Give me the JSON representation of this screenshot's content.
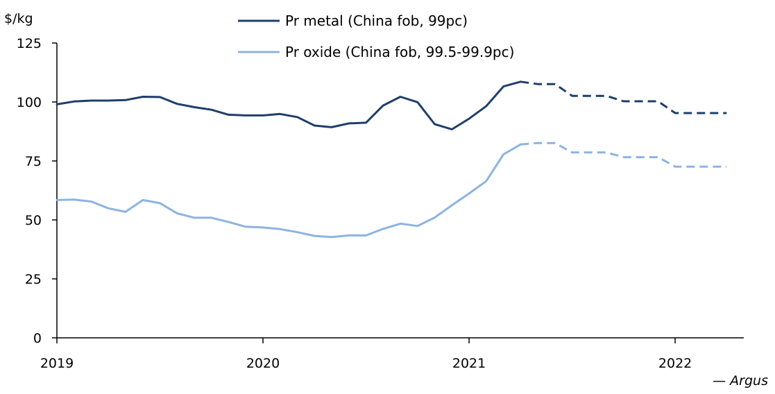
{
  "chart_data": {
    "type": "line",
    "ylabel": "$/kg",
    "ylim": [
      0,
      125
    ],
    "yticks": [
      0,
      25,
      50,
      75,
      100,
      125
    ],
    "xlim": [
      2019.0,
      2022.333
    ],
    "xticks": [
      {
        "value": 2019,
        "label": "2019"
      },
      {
        "value": 2020,
        "label": "2020"
      },
      {
        "value": 2021,
        "label": "2021"
      },
      {
        "value": 2022,
        "label": "2022"
      }
    ],
    "grid": false,
    "legend_position": "top-center",
    "source": "— Argus",
    "colors": {
      "metal": "#1f3e6b",
      "oxide": "#8db3e2",
      "axis": "#000000"
    },
    "series": [
      {
        "name": "Pr metal (China fob, 99pc)",
        "key": "metal",
        "actual": [
          [
            2019.0,
            99
          ],
          [
            2019.083,
            100.2
          ],
          [
            2019.167,
            100.6
          ],
          [
            2019.25,
            100.6
          ],
          [
            2019.333,
            100.8
          ],
          [
            2019.417,
            102.2
          ],
          [
            2019.5,
            102.1
          ],
          [
            2019.583,
            99.2
          ],
          [
            2019.667,
            97.8
          ],
          [
            2019.75,
            96.7
          ],
          [
            2019.833,
            94.6
          ],
          [
            2019.917,
            94.3
          ],
          [
            2020.0,
            94.3
          ],
          [
            2020.083,
            94.9
          ],
          [
            2020.167,
            93.6
          ],
          [
            2020.25,
            90.0
          ],
          [
            2020.333,
            89.3
          ],
          [
            2020.417,
            90.9
          ],
          [
            2020.5,
            91.2
          ],
          [
            2020.583,
            98.5
          ],
          [
            2020.667,
            102.2
          ],
          [
            2020.75,
            99.9
          ],
          [
            2020.833,
            90.6
          ],
          [
            2020.917,
            88.4
          ],
          [
            2021.0,
            92.9
          ],
          [
            2021.083,
            98.2
          ],
          [
            2021.167,
            106.6
          ],
          [
            2021.25,
            108.6
          ]
        ],
        "forecast": [
          [
            2021.25,
            108.6
          ],
          [
            2021.333,
            107.6
          ],
          [
            2021.417,
            107.6
          ],
          [
            2021.5,
            102.6
          ],
          [
            2021.583,
            102.6
          ],
          [
            2021.667,
            102.6
          ],
          [
            2021.75,
            100.3
          ],
          [
            2021.833,
            100.3
          ],
          [
            2021.917,
            100.3
          ],
          [
            2022.0,
            95.3
          ],
          [
            2022.083,
            95.3
          ],
          [
            2022.167,
            95.3
          ],
          [
            2022.25,
            95.3
          ]
        ]
      },
      {
        "name": "Pr oxide (China fob, 99.5-99.9pc)",
        "key": "oxide",
        "actual": [
          [
            2019.0,
            58.4
          ],
          [
            2019.083,
            58.6
          ],
          [
            2019.167,
            57.8
          ],
          [
            2019.25,
            54.9
          ],
          [
            2019.333,
            53.4
          ],
          [
            2019.417,
            58.4
          ],
          [
            2019.5,
            57.1
          ],
          [
            2019.583,
            52.8
          ],
          [
            2019.667,
            50.9
          ],
          [
            2019.75,
            50.9
          ],
          [
            2019.833,
            49.1
          ],
          [
            2019.917,
            47.1
          ],
          [
            2020.0,
            46.8
          ],
          [
            2020.083,
            46.1
          ],
          [
            2020.167,
            44.8
          ],
          [
            2020.25,
            43.2
          ],
          [
            2020.333,
            42.7
          ],
          [
            2020.417,
            43.4
          ],
          [
            2020.5,
            43.4
          ],
          [
            2020.583,
            46.2
          ],
          [
            2020.667,
            48.4
          ],
          [
            2020.75,
            47.4
          ],
          [
            2020.833,
            51.0
          ],
          [
            2020.917,
            56.2
          ],
          [
            2021.0,
            61.2
          ],
          [
            2021.083,
            66.4
          ],
          [
            2021.167,
            77.8
          ],
          [
            2021.25,
            82.0
          ]
        ],
        "forecast": [
          [
            2021.25,
            82.0
          ],
          [
            2021.333,
            82.6
          ],
          [
            2021.417,
            82.6
          ],
          [
            2021.5,
            78.6
          ],
          [
            2021.583,
            78.6
          ],
          [
            2021.667,
            78.6
          ],
          [
            2021.75,
            76.6
          ],
          [
            2021.833,
            76.6
          ],
          [
            2021.917,
            76.6
          ],
          [
            2022.0,
            72.6
          ],
          [
            2022.083,
            72.6
          ],
          [
            2022.167,
            72.6
          ],
          [
            2022.25,
            72.6
          ]
        ]
      }
    ]
  }
}
